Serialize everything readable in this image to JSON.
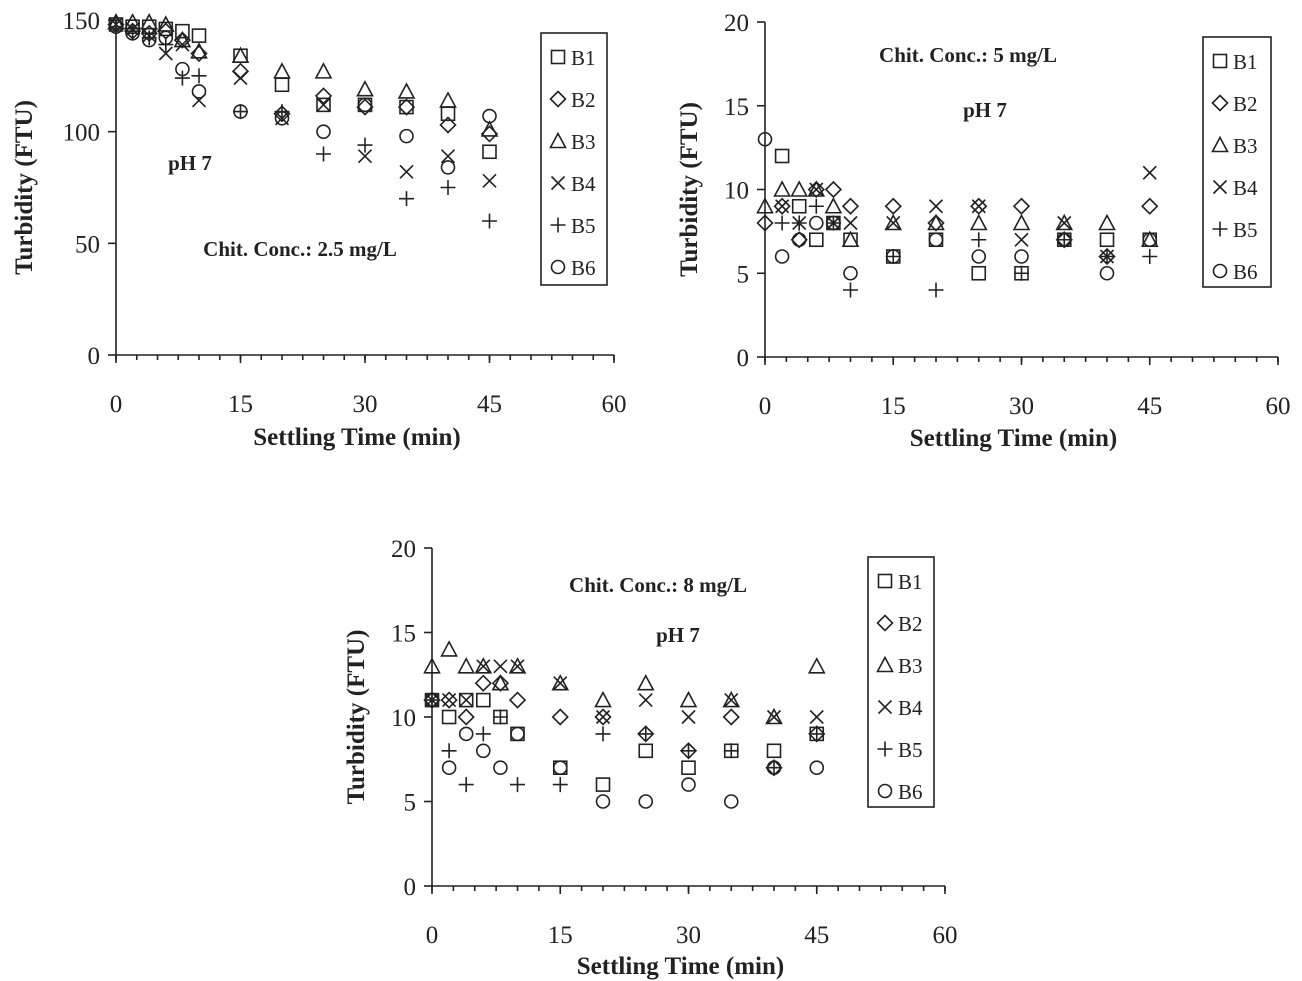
{
  "chart_data": [
    {
      "type": "scatter",
      "title": "",
      "xlabel": "Settling Time (min)",
      "ylabel": "Turbidity (FTU)",
      "xlim": [
        0,
        60
      ],
      "ylim": [
        0,
        150
      ],
      "xticks": [
        0,
        15,
        30,
        45,
        60
      ],
      "yticks": [
        0,
        50,
        100,
        150
      ],
      "grid": false,
      "legend_position": "right-inside",
      "annotations": [
        "pH 7",
        "Chit. Conc.: 2.5 mg/L"
      ],
      "x": [
        0,
        2,
        4,
        6,
        8,
        10,
        15,
        20,
        25,
        30,
        35,
        40,
        45
      ],
      "series": [
        {
          "name": "B1",
          "marker": "square",
          "values": [
            148,
            147,
            147,
            146,
            145,
            143,
            134,
            121,
            112,
            112,
            111,
            108,
            91
          ]
        },
        {
          "name": "B2",
          "marker": "diamond",
          "values": [
            148,
            145,
            144,
            145,
            141,
            135,
            127,
            108,
            116,
            111,
            111,
            103,
            99
          ]
        },
        {
          "name": "B3",
          "marker": "triangle",
          "values": [
            149,
            149,
            149,
            148,
            141,
            136,
            134,
            127,
            127,
            119,
            118,
            114,
            101
          ]
        },
        {
          "name": "B4",
          "marker": "x",
          "values": [
            148,
            146,
            143,
            135,
            139,
            114,
            124,
            106,
            112,
            89,
            82,
            89,
            78
          ]
        },
        {
          "name": "B5",
          "marker": "plus",
          "values": [
            147,
            145,
            142,
            139,
            124,
            125,
            109,
            109,
            90,
            94,
            70,
            75,
            60
          ]
        },
        {
          "name": "B6",
          "marker": "circle",
          "values": [
            147,
            144,
            141,
            142,
            128,
            118,
            109,
            106,
            100,
            112,
            98,
            84,
            107
          ]
        }
      ]
    },
    {
      "type": "scatter",
      "title": "",
      "xlabel": "Settling Time (min)",
      "ylabel": "Turbidity (FTU)",
      "xlim": [
        0,
        60
      ],
      "ylim": [
        0,
        20
      ],
      "xticks": [
        0,
        15,
        30,
        45,
        60
      ],
      "yticks": [
        0,
        5,
        10,
        15,
        20
      ],
      "grid": false,
      "legend_position": "right-inside",
      "annotations": [
        "Chit. Conc.: 5 mg/L",
        "pH 7"
      ],
      "x": [
        0,
        2,
        4,
        6,
        8,
        10,
        15,
        20,
        25,
        30,
        35,
        40,
        45
      ],
      "series": [
        {
          "name": "B1",
          "marker": "square",
          "values": [
            null,
            12,
            9,
            7,
            8,
            7,
            6,
            7,
            5,
            5,
            7,
            7,
            7
          ]
        },
        {
          "name": "B2",
          "marker": "diamond",
          "values": [
            8,
            9,
            7,
            10,
            10,
            9,
            9,
            8,
            9,
            9,
            7,
            6,
            9
          ]
        },
        {
          "name": "B3",
          "marker": "triangle",
          "values": [
            9,
            10,
            10,
            10,
            9,
            7,
            8,
            8,
            8,
            8,
            8,
            8,
            7
          ]
        },
        {
          "name": "B4",
          "marker": "x",
          "values": [
            null,
            9,
            8,
            10,
            8,
            8,
            8,
            9,
            9,
            7,
            8,
            6,
            11
          ]
        },
        {
          "name": "B5",
          "marker": "plus",
          "values": [
            null,
            8,
            8,
            9,
            8,
            4,
            6,
            4,
            7,
            5,
            7,
            6,
            6
          ]
        },
        {
          "name": "B6",
          "marker": "circle",
          "values": [
            13,
            6,
            7,
            8,
            8,
            5,
            6,
            7,
            6,
            6,
            7,
            5,
            7
          ]
        }
      ]
    },
    {
      "type": "scatter",
      "title": "",
      "xlabel": "Settling Time (min)",
      "ylabel": "Turbidity (FTU)",
      "xlim": [
        0,
        60
      ],
      "ylim": [
        0,
        20
      ],
      "xticks": [
        0,
        15,
        30,
        45,
        60
      ],
      "yticks": [
        0,
        5,
        10,
        15,
        20
      ],
      "grid": false,
      "legend_position": "right-inside",
      "annotations": [
        "Chit. Conc.: 8 mg/L",
        "pH 7"
      ],
      "x": [
        0,
        2,
        4,
        6,
        8,
        10,
        15,
        20,
        25,
        30,
        35,
        40,
        45
      ],
      "series": [
        {
          "name": "B1",
          "marker": "square",
          "values": [
            11,
            10,
            11,
            11,
            10,
            9,
            7,
            6,
            8,
            7,
            8,
            8,
            9
          ]
        },
        {
          "name": "B2",
          "marker": "diamond",
          "values": [
            11,
            11,
            10,
            12,
            12,
            11,
            10,
            10,
            9,
            8,
            10,
            7,
            9
          ]
        },
        {
          "name": "B3",
          "marker": "triangle",
          "values": [
            13,
            14,
            13,
            13,
            12,
            13,
            12,
            11,
            12,
            11,
            11,
            10,
            13
          ]
        },
        {
          "name": "B4",
          "marker": "x",
          "values": [
            11,
            11,
            11,
            13,
            13,
            13,
            12,
            10,
            11,
            10,
            11,
            10,
            10
          ]
        },
        {
          "name": "B5",
          "marker": "plus",
          "values": [
            11,
            8,
            6,
            9,
            10,
            6,
            6,
            9,
            9,
            8,
            8,
            7,
            9
          ]
        },
        {
          "name": "B6",
          "marker": "circle",
          "values": [
            11,
            7,
            9,
            8,
            7,
            9,
            7,
            5,
            5,
            6,
            5,
            7,
            7
          ]
        }
      ]
    }
  ]
}
